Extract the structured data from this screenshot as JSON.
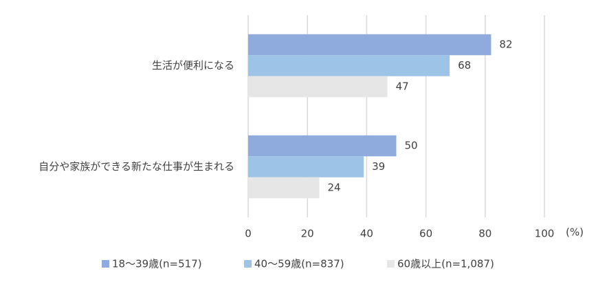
{
  "chart_data": {
    "type": "bar",
    "orientation": "horizontal",
    "categories": [
      "生活が便利になる",
      "自分や家族ができる新たな仕事が生まれる"
    ],
    "series": [
      {
        "name": "18～39歳(n=517)",
        "color": "#8faadc",
        "values": [
          82,
          50
        ]
      },
      {
        "name": "40～59歳(n=837)",
        "color": "#9dc3e6",
        "values": [
          68,
          39
        ]
      },
      {
        "name": "60歳以上(n=1,087)",
        "color": "#e7e6e6",
        "values": [
          47,
          24
        ]
      }
    ],
    "x_label": "(%)",
    "xlim": [
      0,
      100
    ],
    "xticks": [
      0,
      20,
      40,
      60,
      80,
      100
    ],
    "grid": true,
    "legend": "bottom"
  }
}
